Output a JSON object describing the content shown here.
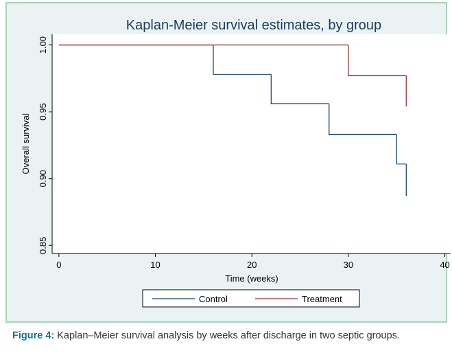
{
  "chart_data": {
    "type": "step",
    "title": "Kaplan-Meier survival estimates, by group",
    "xlabel": "Time (weeks)",
    "ylabel": "Overall survival",
    "xlim": [
      -0.7,
      40.6
    ],
    "ylim": [
      0.844,
      1.008
    ],
    "xticks": [
      0,
      10,
      20,
      30,
      40
    ],
    "yticks": [
      {
        "value": 0.85,
        "label": "0.85"
      },
      {
        "value": 0.9,
        "label": "0.90"
      },
      {
        "value": 0.95,
        "label": "0.95"
      },
      {
        "value": 1.0,
        "label": "1.00"
      }
    ],
    "series": [
      {
        "name": "Control",
        "color": "#1a476f",
        "x": [
          0,
          16,
          22,
          28,
          35,
          36
        ],
        "values": [
          1.0,
          0.978,
          0.956,
          0.933,
          0.911,
          0.887
        ]
      },
      {
        "name": "Treatment",
        "color": "#90353b",
        "x": [
          0,
          30,
          36
        ],
        "values": [
          1.0,
          0.977,
          0.954
        ]
      }
    ],
    "legend": "bottom"
  },
  "caption": {
    "label": "Figure 4:",
    "text": "Kaplan–Meier survival analysis by weeks after discharge in two septic groups."
  }
}
